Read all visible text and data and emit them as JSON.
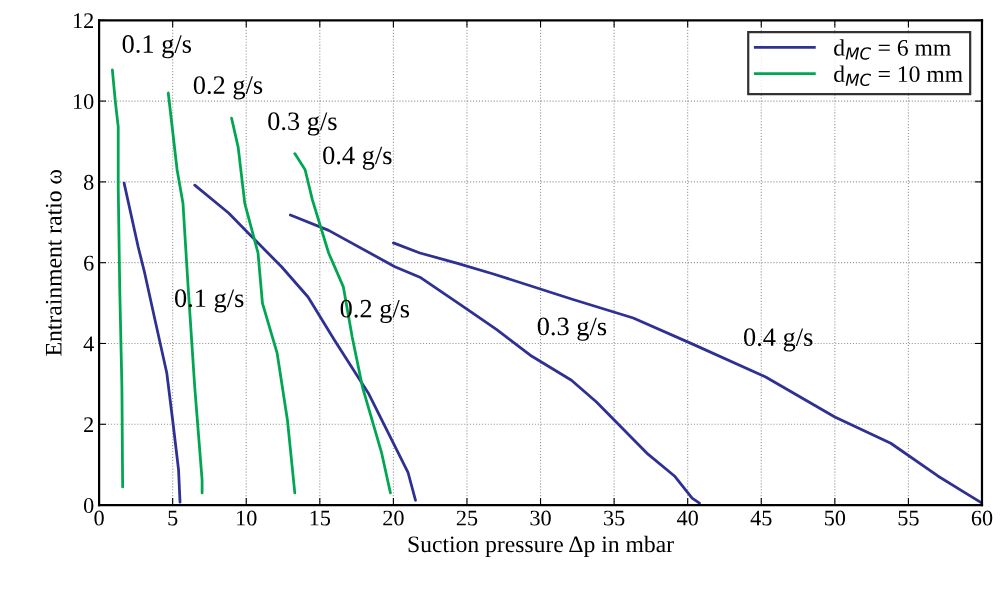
{
  "chart_data": {
    "type": "line",
    "xlabel": "Suction pressure Δp in mbar",
    "ylabel": "Entrainment ratio ω",
    "xlim": [
      0,
      60
    ],
    "ylim": [
      0,
      12
    ],
    "xticks": [
      0,
      5,
      10,
      15,
      20,
      25,
      30,
      35,
      40,
      45,
      50,
      55,
      60
    ],
    "yticks": [
      0,
      2,
      4,
      6,
      8,
      10,
      12
    ],
    "grid": true,
    "legend": "top right",
    "line_style": "solid",
    "marker": "none",
    "series": [
      {
        "name": "d$_{MC}$ = 6 mm",
        "color": "#2e3192",
        "x": [
          1.7,
          2.65,
          3.1,
          3.8,
          4.6,
          5.0,
          5.4,
          5.5
        ],
        "values": [
          7.97,
          6.4,
          5.74,
          4.58,
          3.27,
          2.1,
          0.87,
          0.07
        ]
      },
      {
        "color": "#2e3192",
        "x": [
          6.5,
          8.8,
          10.6,
          12.4,
          14.2,
          16.0,
          18.3,
          21.0,
          21.5
        ],
        "values": [
          7.92,
          7.23,
          6.56,
          5.9,
          5.15,
          4.08,
          2.77,
          0.8,
          0.12
        ]
      },
      {
        "color": "#2e3192",
        "x": [
          13.0,
          15.6,
          20.1,
          21.8,
          24.8,
          27.0,
          29.3,
          32.1,
          33.8,
          37.3,
          39.1,
          40.3,
          40.8
        ],
        "values": [
          7.18,
          6.8,
          5.9,
          5.64,
          4.9,
          4.35,
          3.71,
          3.09,
          2.55,
          1.26,
          0.72,
          0.17,
          0.05
        ]
      },
      {
        "color": "#2e3192",
        "x": [
          20.0,
          21.8,
          24.3,
          26.8,
          32.1,
          36.3,
          40.3,
          45.3,
          50.0,
          53.8,
          57.0,
          59.0,
          60.0
        ],
        "values": [
          6.49,
          6.24,
          5.99,
          5.72,
          5.1,
          4.63,
          3.99,
          3.17,
          2.18,
          1.53,
          0.72,
          0.27,
          0.05
        ]
      },
      {
        "name": "d$_{MC}$ = 10 mm",
        "color": "#00a651",
        "x": [
          0.9,
          1.1,
          1.3,
          1.3,
          1.4,
          1.55,
          1.6
        ],
        "values": [
          10.77,
          10.0,
          9.36,
          7.87,
          5.4,
          2.92,
          0.45
        ]
      },
      {
        "color": "#00a651",
        "x": [
          4.7,
          5.3,
          5.7,
          6.05,
          6.5,
          7.0,
          7.0
        ],
        "values": [
          10.2,
          8.3,
          7.47,
          5.4,
          2.92,
          0.62,
          0.3
        ]
      },
      {
        "color": "#00a651",
        "x": [
          9.0,
          9.45,
          9.9,
          10.8,
          11.1,
          12.1,
          12.8,
          13.3
        ],
        "values": [
          9.58,
          8.86,
          7.47,
          6.24,
          5.0,
          3.76,
          2.1,
          0.3
        ]
      },
      {
        "color": "#00a651",
        "x": [
          13.3,
          14.0,
          14.5,
          15.6,
          16.6,
          17.2,
          17.9,
          19.2,
          19.8
        ],
        "values": [
          8.7,
          8.3,
          7.55,
          6.24,
          5.4,
          4.16,
          2.92,
          1.29,
          0.3
        ]
      }
    ],
    "annotations": [
      {
        "text": "0.1 g/s",
        "x": 3.8,
        "y": 4.58
      },
      {
        "text": "0.2 g/s",
        "x": 16.0,
        "y": 4.08
      },
      {
        "text": "0.3 g/s",
        "x": 29.3,
        "y": 3.71
      },
      {
        "text": "0.4 g/s",
        "x": 45.3,
        "y": 3.17
      },
      {
        "text": "0.1 g/s",
        "x": 0.9,
        "y": 10.77
      },
      {
        "text": "0.2 g/s",
        "x": 4.7,
        "y": 10.2
      },
      {
        "text": "0.3 g/s",
        "x": 9.0,
        "y": 9.58
      },
      {
        "text": "0.4 g/s",
        "x": 13.3,
        "y": 8.7
      }
    ]
  }
}
